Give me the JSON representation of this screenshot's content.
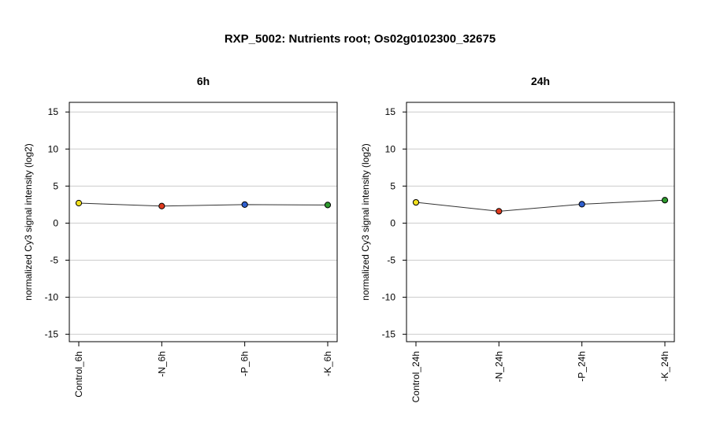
{
  "title": "RXP_5002: Nutrients root; Os02g0102300_32675",
  "chart_data": [
    {
      "type": "line",
      "title": "6h",
      "ylabel": "normalized Cy3 signal intensity (log2)",
      "xlabel": "",
      "categories": [
        "Control_6h",
        "-N_6h",
        "-P_6h",
        "-K_6h"
      ],
      "values": [
        2.7,
        2.3,
        2.5,
        2.45
      ],
      "point_colors": [
        "#f2e01e",
        "#e03a1e",
        "#2f5fcf",
        "#2e9a2e"
      ],
      "ylim": [
        -16,
        16.3
      ],
      "yticks": [
        -15,
        -10,
        -5,
        0,
        5,
        10,
        15
      ],
      "grid": true
    },
    {
      "type": "line",
      "title": "24h",
      "ylabel": "normalized Cy3 signal intensity (log2)",
      "xlabel": "",
      "categories": [
        "Control_24h",
        "-N_24h",
        "-P_24h",
        "-K_24h"
      ],
      "values": [
        2.8,
        1.6,
        2.55,
        3.1
      ],
      "point_colors": [
        "#f2e01e",
        "#e03a1e",
        "#2f5fcf",
        "#2e9a2e"
      ],
      "ylim": [
        -16,
        16.3
      ],
      "yticks": [
        -15,
        -10,
        -5,
        0,
        5,
        10,
        15
      ],
      "grid": true
    }
  ]
}
